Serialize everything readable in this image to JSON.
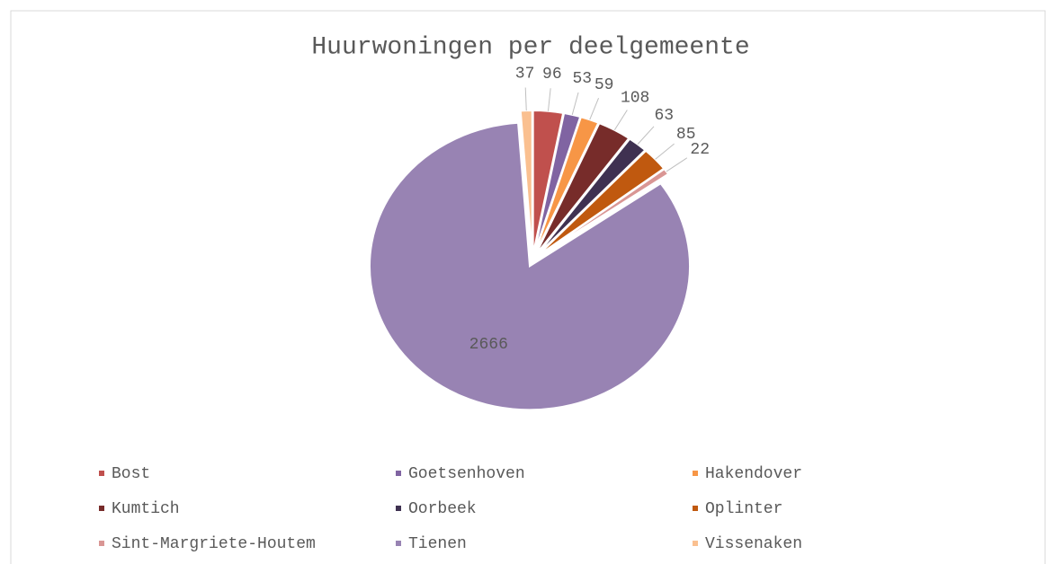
{
  "chart_data": {
    "type": "pie",
    "title": "Huurwoningen per deelgemeente",
    "categories": [
      "Bost",
      "Goetsenhoven",
      "Hakendover",
      "Kumtich",
      "Oorbeek",
      "Oplinter",
      "Sint-Margriete-Houtem",
      "Tienen",
      "Vissenaken"
    ],
    "values": [
      96,
      53,
      59,
      108,
      63,
      85,
      22,
      2666,
      37
    ],
    "colors": [
      "#c0504d",
      "#8064a2",
      "#f79646",
      "#772c2a",
      "#3f3151",
      "#c0590f",
      "#d99694",
      "#9883b3",
      "#fac090"
    ],
    "legend": "bottom"
  }
}
